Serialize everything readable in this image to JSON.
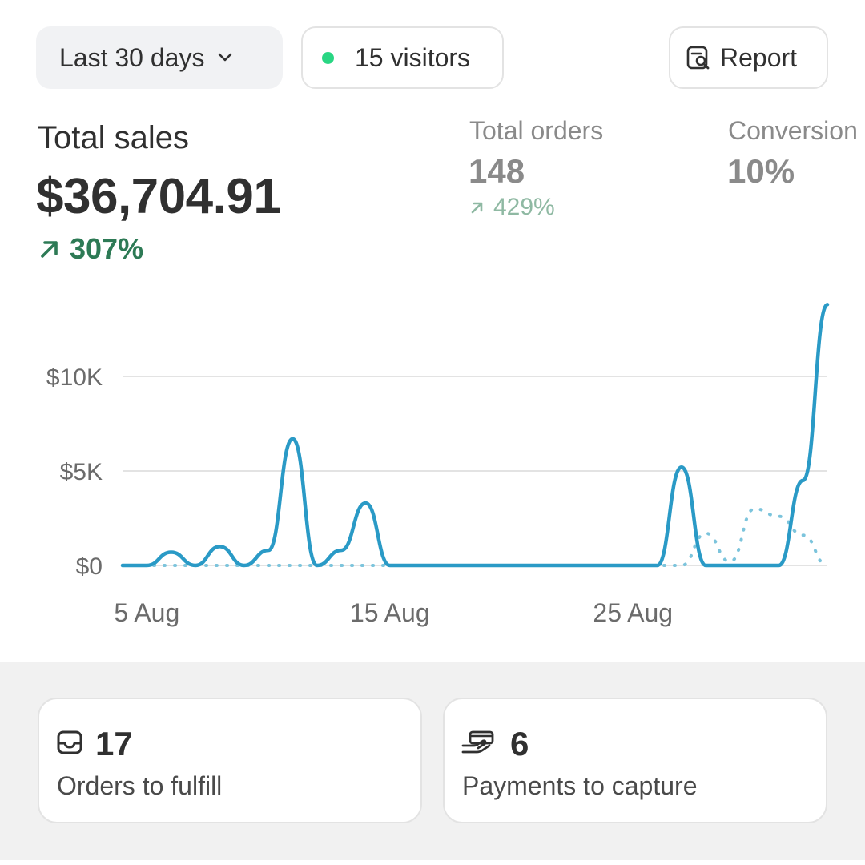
{
  "toolbar": {
    "date_range": "Last 30 days",
    "visitors": "15 visitors",
    "report": "Report"
  },
  "metrics": {
    "total_sales": {
      "label": "Total sales",
      "value": "$36,704.91",
      "change": "307%"
    },
    "total_orders": {
      "label": "Total orders",
      "value": "148",
      "change": "429%"
    },
    "conversion": {
      "label": "Conversion",
      "value": "10%"
    }
  },
  "colors": {
    "accent_line": "#2a9ac6",
    "positive": "#2d7a55",
    "visitor_dot": "#29d683"
  },
  "chart_data": {
    "type": "line",
    "x": [
      "4 Aug",
      "5 Aug",
      "6 Aug",
      "7 Aug",
      "8 Aug",
      "9 Aug",
      "10 Aug",
      "11 Aug",
      "12 Aug",
      "13 Aug",
      "14 Aug",
      "15 Aug",
      "16 Aug",
      "17 Aug",
      "18 Aug",
      "19 Aug",
      "20 Aug",
      "21 Aug",
      "22 Aug",
      "23 Aug",
      "24 Aug",
      "25 Aug",
      "26 Aug",
      "27 Aug",
      "28 Aug",
      "29 Aug",
      "30 Aug",
      "31 Aug",
      "1 Sep",
      "2 Sep"
    ],
    "x_tick_labels": [
      "5 Aug",
      "15 Aug",
      "25 Aug"
    ],
    "y_tick_labels": [
      "$0",
      "$5K",
      "$10K"
    ],
    "ylim": [
      0,
      14000
    ],
    "series": [
      {
        "style": "solid",
        "values": [
          0,
          0,
          700,
          0,
          1000,
          0,
          800,
          6700,
          0,
          800,
          3300,
          0,
          0,
          0,
          0,
          0,
          0,
          0,
          0,
          0,
          0,
          0,
          0,
          5200,
          0,
          0,
          0,
          0,
          4500,
          13800
        ]
      },
      {
        "style": "dotted",
        "values": [
          0,
          0,
          0,
          0,
          0,
          0,
          0,
          0,
          0,
          0,
          0,
          0,
          0,
          0,
          0,
          0,
          0,
          0,
          0,
          0,
          0,
          0,
          0,
          0,
          1700,
          200,
          3000,
          2600,
          1600,
          0
        ]
      }
    ]
  },
  "tasks": [
    {
      "count": "17",
      "label": "Orders to fulfill",
      "icon": "inbox-icon"
    },
    {
      "count": "6",
      "label": "Payments to capture",
      "icon": "payment-hand-icon"
    }
  ]
}
